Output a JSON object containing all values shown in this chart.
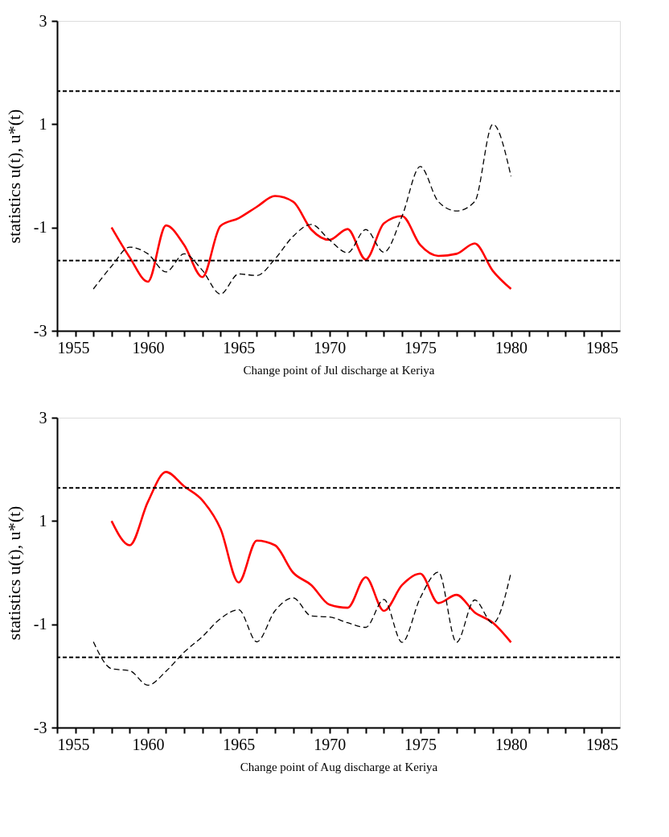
{
  "chart_data": [
    {
      "type": "line",
      "xlabel": "Change point of Jul discharge at Keriya",
      "ylabel": "statistics u(t), u*(t)",
      "xlim": [
        1955,
        1986
      ],
      "ylim": [
        -3,
        3
      ],
      "xticks": [
        1955,
        {
          "value": 1956,
          "label": null
        },
        {
          "value": 1957,
          "label": null
        },
        {
          "value": 1958,
          "label": null
        },
        {
          "value": 1959,
          "label": null
        },
        1960,
        {
          "value": 1961,
          "label": null
        },
        {
          "value": 1962,
          "label": null
        },
        {
          "value": 1963,
          "label": null
        },
        {
          "value": 1964,
          "label": null
        },
        1965,
        {
          "value": 1966,
          "label": null
        },
        {
          "value": 1967,
          "label": null
        },
        {
          "value": 1968,
          "label": null
        },
        {
          "value": 1969,
          "label": null
        },
        1970,
        {
          "value": 1971,
          "label": null
        },
        {
          "value": 1972,
          "label": null
        },
        {
          "value": 1973,
          "label": null
        },
        {
          "value": 1974,
          "label": null
        },
        1975,
        {
          "value": 1976,
          "label": null
        },
        {
          "value": 1977,
          "label": null
        },
        {
          "value": 1978,
          "label": null
        },
        {
          "value": 1979,
          "label": null
        },
        1980,
        {
          "value": 1981,
          "label": null
        },
        {
          "value": 1982,
          "label": null
        },
        {
          "value": 1983,
          "label": null
        },
        {
          "value": 1984,
          "label": null
        },
        1985
      ],
      "yticks": [
        -3,
        -1,
        1,
        3
      ],
      "series": [
        {
          "color": "#ff0000",
          "line_style": "solid",
          "x": [
            1958,
            1959,
            1960,
            1961,
            1962,
            1963,
            1964,
            1965,
            1966,
            1967,
            1968,
            1969,
            1970,
            1971,
            1972,
            1973,
            1974,
            1975,
            1976,
            1977,
            1978,
            1979,
            1980
          ],
          "values": [
            -1.0,
            -1.58,
            -2.05,
            -0.96,
            -1.34,
            -1.96,
            -0.97,
            -0.82,
            -0.6,
            -0.39,
            -0.5,
            -1.04,
            -1.24,
            -1.03,
            -1.62,
            -0.92,
            -0.78,
            -1.34,
            -1.55,
            -1.51,
            -1.31,
            -1.84,
            -2.19
          ]
        },
        {
          "color": "#000000",
          "line_style": "dashed",
          "x": [
            1957,
            1958,
            1959,
            1960,
            1961,
            1962,
            1963,
            1964,
            1965,
            1966,
            1967,
            1968,
            1969,
            1970,
            1971,
            1972,
            1973,
            1974,
            1975,
            1976,
            1977,
            1978,
            1979,
            1980
          ],
          "values": [
            -2.19,
            -1.75,
            -1.38,
            -1.51,
            -1.86,
            -1.51,
            -1.83,
            -2.29,
            -1.9,
            -1.93,
            -1.61,
            -1.17,
            -0.94,
            -1.24,
            -1.49,
            -1.04,
            -1.48,
            -0.78,
            0.18,
            -0.5,
            -0.68,
            -0.5,
            1.0,
            -0.01
          ]
        }
      ],
      "ref_lines": [
        {
          "axis": "y",
          "value": 1.64,
          "color": "#000000",
          "line_style": "dashed"
        },
        {
          "axis": "y",
          "value": -1.64,
          "color": "#000000",
          "line_style": "dashed"
        }
      ]
    },
    {
      "type": "line",
      "xlabel": "Change point of Aug discharge at Keriya",
      "ylabel": "statistics u(t), u*(t)",
      "xlim": [
        1955,
        1986
      ],
      "ylim": [
        -3,
        3
      ],
      "xticks": [
        1955,
        {
          "value": 1956,
          "label": null
        },
        {
          "value": 1957,
          "label": null
        },
        {
          "value": 1958,
          "label": null
        },
        {
          "value": 1959,
          "label": null
        },
        1960,
        {
          "value": 1961,
          "label": null
        },
        {
          "value": 1962,
          "label": null
        },
        {
          "value": 1963,
          "label": null
        },
        {
          "value": 1964,
          "label": null
        },
        1965,
        {
          "value": 1966,
          "label": null
        },
        {
          "value": 1967,
          "label": null
        },
        {
          "value": 1968,
          "label": null
        },
        {
          "value": 1969,
          "label": null
        },
        1970,
        {
          "value": 1971,
          "label": null
        },
        {
          "value": 1972,
          "label": null
        },
        {
          "value": 1973,
          "label": null
        },
        {
          "value": 1974,
          "label": null
        },
        1975,
        {
          "value": 1976,
          "label": null
        },
        {
          "value": 1977,
          "label": null
        },
        {
          "value": 1978,
          "label": null
        },
        {
          "value": 1979,
          "label": null
        },
        1980,
        {
          "value": 1981,
          "label": null
        },
        {
          "value": 1982,
          "label": null
        },
        {
          "value": 1983,
          "label": null
        },
        {
          "value": 1984,
          "label": null
        },
        1985
      ],
      "yticks": [
        -3,
        -1,
        1,
        3
      ],
      "series": [
        {
          "color": "#ff0000",
          "line_style": "solid",
          "x": [
            1958,
            1959,
            1960,
            1961,
            1962,
            1963,
            1964,
            1965,
            1966,
            1967,
            1968,
            1969,
            1970,
            1971,
            1972,
            1973,
            1974,
            1975,
            1976,
            1977,
            1978,
            1979,
            1980
          ],
          "values": [
            1.0,
            0.53,
            1.37,
            1.95,
            1.67,
            1.4,
            0.85,
            -0.19,
            0.62,
            0.53,
            0.0,
            -0.24,
            -0.62,
            -0.68,
            -0.09,
            -0.74,
            -0.24,
            -0.02,
            -0.59,
            -0.43,
            -0.77,
            -0.97,
            -1.35
          ]
        },
        {
          "color": "#000000",
          "line_style": "dashed",
          "x": [
            1957,
            1958,
            1959,
            1960,
            1961,
            1962,
            1963,
            1964,
            1965,
            1966,
            1967,
            1968,
            1969,
            1970,
            1971,
            1972,
            1973,
            1974,
            1975,
            1976,
            1977,
            1978,
            1979,
            1980
          ],
          "values": [
            -1.34,
            -1.86,
            -1.9,
            -2.18,
            -1.91,
            -1.54,
            -1.24,
            -0.89,
            -0.72,
            -1.34,
            -0.74,
            -0.49,
            -0.84,
            -0.86,
            -0.97,
            -1.06,
            -0.52,
            -1.35,
            -0.49,
            0.01,
            -1.35,
            -0.53,
            -0.98,
            0.0
          ]
        }
      ],
      "ref_lines": [
        {
          "axis": "y",
          "value": 1.64,
          "color": "#000000",
          "line_style": "dashed"
        },
        {
          "axis": "y",
          "value": -1.64,
          "color": "#000000",
          "line_style": "dashed"
        }
      ]
    }
  ]
}
